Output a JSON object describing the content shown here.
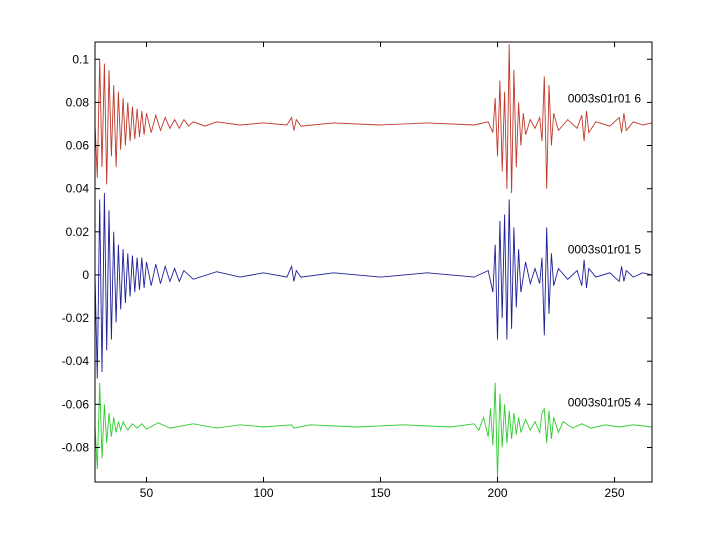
{
  "chart_data": {
    "type": "line",
    "title": "",
    "xlabel": "",
    "ylabel": "",
    "xlim": [
      28,
      266
    ],
    "ylim": [
      -0.096,
      0.108
    ],
    "xticks": [
      50,
      100,
      150,
      200,
      250
    ],
    "xtick_labels": [
      "50",
      "100",
      "150",
      "200",
      "250"
    ],
    "yticks": [
      0.1,
      0.08,
      0.06,
      0.04,
      0.02,
      0,
      -0.02,
      -0.04,
      -0.06,
      -0.08
    ],
    "ytick_labels": [
      "0.1",
      "0.08",
      "0.06",
      "0.04",
      "0.02",
      "0",
      "-0.02",
      "-0.04",
      "-0.06",
      "-0.08"
    ],
    "grid": false,
    "legend": "none",
    "series": [
      {
        "name": "0003s01r01  6",
        "color": "#c0392b",
        "baseline": 0.07,
        "label_at": [
          230,
          0.08
        ],
        "points": [
          [
            28,
            0.07
          ],
          [
            29,
            0.045
          ],
          [
            30,
            0.1
          ],
          [
            31,
            0.05
          ],
          [
            32,
            0.098
          ],
          [
            33,
            0.042
          ],
          [
            34,
            0.095
          ],
          [
            35,
            0.055
          ],
          [
            36,
            0.088
          ],
          [
            37,
            0.05
          ],
          [
            38,
            0.085
          ],
          [
            39,
            0.058
          ],
          [
            40,
            0.082
          ],
          [
            41,
            0.06
          ],
          [
            42,
            0.08
          ],
          [
            43,
            0.062
          ],
          [
            44,
            0.078
          ],
          [
            45,
            0.063
          ],
          [
            46,
            0.077
          ],
          [
            47,
            0.064
          ],
          [
            48,
            0.076
          ],
          [
            49,
            0.065
          ],
          [
            50,
            0.075
          ],
          [
            52,
            0.066
          ],
          [
            54,
            0.074
          ],
          [
            56,
            0.067
          ],
          [
            58,
            0.073
          ],
          [
            60,
            0.068
          ],
          [
            62,
            0.072
          ],
          [
            64,
            0.068
          ],
          [
            66,
            0.072
          ],
          [
            68,
            0.069
          ],
          [
            70,
            0.071
          ],
          [
            75,
            0.069
          ],
          [
            80,
            0.071
          ],
          [
            90,
            0.0695
          ],
          [
            100,
            0.0705
          ],
          [
            110,
            0.0695
          ],
          [
            112,
            0.073
          ],
          [
            113,
            0.067
          ],
          [
            114,
            0.072
          ],
          [
            116,
            0.069
          ],
          [
            130,
            0.0705
          ],
          [
            150,
            0.0695
          ],
          [
            170,
            0.0705
          ],
          [
            190,
            0.0695
          ],
          [
            196,
            0.071
          ],
          [
            198,
            0.066
          ],
          [
            199,
            0.082
          ],
          [
            200,
            0.055
          ],
          [
            201,
            0.09
          ],
          [
            202,
            0.048
          ],
          [
            203,
            0.085
          ],
          [
            204,
            0.04
          ],
          [
            205,
            0.107
          ],
          [
            206,
            0.038
          ],
          [
            207,
            0.095
          ],
          [
            208,
            0.05
          ],
          [
            209,
            0.08
          ],
          [
            210,
            0.06
          ],
          [
            211,
            0.075
          ],
          [
            212,
            0.065
          ],
          [
            214,
            0.072
          ],
          [
            216,
            0.068
          ],
          [
            218,
            0.073
          ],
          [
            219,
            0.062
          ],
          [
            220,
            0.092
          ],
          [
            221,
            0.04
          ],
          [
            222,
            0.088
          ],
          [
            223,
            0.06
          ],
          [
            224,
            0.075
          ],
          [
            226,
            0.067
          ],
          [
            230,
            0.072
          ],
          [
            234,
            0.068
          ],
          [
            236,
            0.074
          ],
          [
            237,
            0.062
          ],
          [
            238,
            0.076
          ],
          [
            239,
            0.066
          ],
          [
            242,
            0.071
          ],
          [
            248,
            0.069
          ],
          [
            252,
            0.073
          ],
          [
            253,
            0.066
          ],
          [
            254,
            0.075
          ],
          [
            255,
            0.067
          ],
          [
            258,
            0.071
          ],
          [
            262,
            0.0695
          ],
          [
            266,
            0.0705
          ]
        ]
      },
      {
        "name": "0003s01r01  5",
        "color": "#1f1f9a",
        "baseline": 0.0,
        "label_at": [
          230,
          0.01
        ],
        "points": [
          [
            28,
            0.0
          ],
          [
            29,
            -0.048
          ],
          [
            30,
            0.035
          ],
          [
            31,
            -0.045
          ],
          [
            32,
            0.038
          ],
          [
            33,
            -0.035
          ],
          [
            34,
            0.03
          ],
          [
            35,
            -0.03
          ],
          [
            36,
            0.02
          ],
          [
            37,
            -0.022
          ],
          [
            38,
            0.014
          ],
          [
            39,
            -0.016
          ],
          [
            40,
            0.012
          ],
          [
            41,
            -0.013
          ],
          [
            42,
            0.01
          ],
          [
            43,
            -0.01
          ],
          [
            44,
            0.009
          ],
          [
            45,
            -0.008
          ],
          [
            46,
            0.008
          ],
          [
            47,
            -0.007
          ],
          [
            48,
            0.008
          ],
          [
            49,
            -0.006
          ],
          [
            50,
            0.006
          ],
          [
            52,
            -0.005
          ],
          [
            54,
            0.005
          ],
          [
            56,
            -0.004
          ],
          [
            58,
            0.004
          ],
          [
            60,
            -0.003
          ],
          [
            62,
            0.003
          ],
          [
            64,
            -0.003
          ],
          [
            66,
            0.002
          ],
          [
            70,
            -0.002
          ],
          [
            80,
            0.0015
          ],
          [
            90,
            -0.001
          ],
          [
            100,
            0.001
          ],
          [
            110,
            -0.001
          ],
          [
            112,
            0.004
          ],
          [
            113,
            -0.003
          ],
          [
            114,
            0.002
          ],
          [
            116,
            -0.001
          ],
          [
            130,
            0.001
          ],
          [
            150,
            -0.001
          ],
          [
            170,
            0.001
          ],
          [
            190,
            -0.001
          ],
          [
            196,
            0.002
          ],
          [
            198,
            -0.008
          ],
          [
            199,
            0.014
          ],
          [
            200,
            -0.03
          ],
          [
            201,
            0.025
          ],
          [
            202,
            -0.02
          ],
          [
            203,
            0.028
          ],
          [
            204,
            -0.03
          ],
          [
            205,
            0.035
          ],
          [
            206,
            -0.025
          ],
          [
            207,
            0.022
          ],
          [
            208,
            -0.015
          ],
          [
            209,
            0.012
          ],
          [
            210,
            -0.008
          ],
          [
            212,
            0.006
          ],
          [
            214,
            -0.004
          ],
          [
            216,
            0.003
          ],
          [
            218,
            -0.004
          ],
          [
            219,
            0.008
          ],
          [
            220,
            -0.028
          ],
          [
            221,
            0.022
          ],
          [
            222,
            -0.018
          ],
          [
            223,
            0.01
          ],
          [
            224,
            -0.005
          ],
          [
            226,
            0.003
          ],
          [
            230,
            -0.002
          ],
          [
            234,
            0.002
          ],
          [
            236,
            -0.005
          ],
          [
            237,
            0.007
          ],
          [
            238,
            -0.006
          ],
          [
            239,
            0.003
          ],
          [
            242,
            -0.001
          ],
          [
            248,
            0.001
          ],
          [
            252,
            -0.003
          ],
          [
            253,
            0.004
          ],
          [
            254,
            -0.003
          ],
          [
            255,
            0.002
          ],
          [
            258,
            -0.001
          ],
          [
            262,
            0.001
          ],
          [
            266,
            0.0
          ]
        ]
      },
      {
        "name": "0003s01r05  4",
        "color": "#2ecc2e",
        "baseline": -0.07,
        "label_at": [
          230,
          -0.061
        ],
        "points": [
          [
            28,
            -0.07
          ],
          [
            29,
            -0.09
          ],
          [
            30,
            -0.05
          ],
          [
            31,
            -0.085
          ],
          [
            32,
            -0.06
          ],
          [
            33,
            -0.078
          ],
          [
            34,
            -0.064
          ],
          [
            35,
            -0.075
          ],
          [
            36,
            -0.066
          ],
          [
            37,
            -0.073
          ],
          [
            38,
            -0.068
          ],
          [
            39,
            -0.072
          ],
          [
            40,
            -0.068
          ],
          [
            42,
            -0.072
          ],
          [
            44,
            -0.069
          ],
          [
            46,
            -0.071
          ],
          [
            48,
            -0.069
          ],
          [
            50,
            -0.0715
          ],
          [
            55,
            -0.0685
          ],
          [
            60,
            -0.071
          ],
          [
            70,
            -0.069
          ],
          [
            80,
            -0.071
          ],
          [
            90,
            -0.0695
          ],
          [
            100,
            -0.0705
          ],
          [
            112,
            -0.0695
          ],
          [
            113,
            -0.071
          ],
          [
            120,
            -0.0695
          ],
          [
            140,
            -0.0705
          ],
          [
            160,
            -0.0695
          ],
          [
            180,
            -0.0705
          ],
          [
            190,
            -0.069
          ],
          [
            192,
            -0.072
          ],
          [
            194,
            -0.066
          ],
          [
            196,
            -0.075
          ],
          [
            197,
            -0.062
          ],
          [
            198,
            -0.079
          ],
          [
            199,
            -0.05
          ],
          [
            200,
            -0.094
          ],
          [
            201,
            -0.055
          ],
          [
            202,
            -0.08
          ],
          [
            203,
            -0.06
          ],
          [
            204,
            -0.078
          ],
          [
            205,
            -0.063
          ],
          [
            206,
            -0.076
          ],
          [
            207,
            -0.064
          ],
          [
            208,
            -0.074
          ],
          [
            209,
            -0.066
          ],
          [
            210,
            -0.073
          ],
          [
            212,
            -0.067
          ],
          [
            214,
            -0.072
          ],
          [
            216,
            -0.068
          ],
          [
            218,
            -0.073
          ],
          [
            219,
            -0.064
          ],
          [
            220,
            -0.062
          ],
          [
            221,
            -0.078
          ],
          [
            222,
            -0.063
          ],
          [
            223,
            -0.076
          ],
          [
            224,
            -0.066
          ],
          [
            226,
            -0.073
          ],
          [
            228,
            -0.068
          ],
          [
            232,
            -0.071
          ],
          [
            236,
            -0.069
          ],
          [
            240,
            -0.071
          ],
          [
            246,
            -0.0695
          ],
          [
            252,
            -0.0705
          ],
          [
            258,
            -0.0695
          ],
          [
            266,
            -0.0705
          ]
        ]
      }
    ]
  }
}
